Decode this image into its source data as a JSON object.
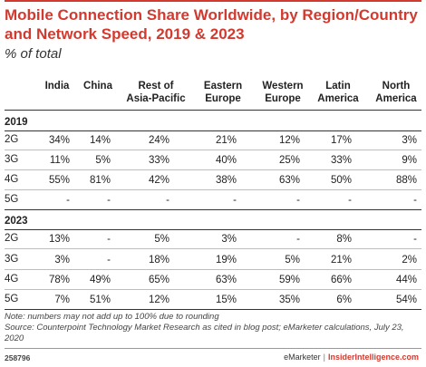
{
  "chart_data": {
    "type": "table",
    "title": "Mobile Connection Share Worldwide, by Region/Country and Network Speed, 2019 & 2023",
    "subtitle": "% of total",
    "columns": [
      "India",
      "China",
      "Rest of Asia-Pacific",
      "Eastern Europe",
      "Western Europe",
      "Latin America",
      "North America"
    ],
    "column_lines": [
      [
        "India"
      ],
      [
        "China"
      ],
      [
        "Rest of",
        "Asia-Pacific"
      ],
      [
        "Eastern",
        "Europe"
      ],
      [
        "Western",
        "Europe"
      ],
      [
        "Latin",
        "America"
      ],
      [
        "North",
        "America"
      ]
    ],
    "groups": [
      {
        "year": "2019",
        "rows": [
          {
            "label": "2G",
            "values": [
              "34%",
              "14%",
              "24%",
              "21%",
              "12%",
              "17%",
              "3%"
            ]
          },
          {
            "label": "3G",
            "values": [
              "11%",
              "5%",
              "33%",
              "40%",
              "25%",
              "33%",
              "9%"
            ]
          },
          {
            "label": "4G",
            "values": [
              "55%",
              "81%",
              "42%",
              "38%",
              "63%",
              "50%",
              "88%"
            ]
          },
          {
            "label": "5G",
            "values": [
              "-",
              "-",
              "-",
              "-",
              "-",
              "-",
              "-"
            ]
          }
        ]
      },
      {
        "year": "2023",
        "rows": [
          {
            "label": "2G",
            "values": [
              "13%",
              "-",
              "5%",
              "3%",
              "-",
              "8%",
              "-"
            ]
          },
          {
            "label": "3G",
            "values": [
              "3%",
              "-",
              "18%",
              "19%",
              "5%",
              "21%",
              "2%"
            ]
          },
          {
            "label": "4G",
            "values": [
              "78%",
              "49%",
              "65%",
              "63%",
              "59%",
              "66%",
              "44%"
            ]
          },
          {
            "label": "5G",
            "values": [
              "7%",
              "51%",
              "12%",
              "15%",
              "35%",
              "6%",
              "54%"
            ]
          }
        ]
      }
    ]
  },
  "notes": {
    "line1": "Note: numbers may not add up to 100% due to rounding",
    "line2": "Source: Counterpoint Technology Market Research as cited in blog post; eMarketer calculations, July 23, 2020"
  },
  "footer": {
    "chart_id": "258796",
    "brand_a": "eMarketer",
    "separator": "|",
    "brand_b": "InsiderIntelligence.com"
  },
  "colors": {
    "accent": "#d23a2f",
    "text": "#222222"
  }
}
